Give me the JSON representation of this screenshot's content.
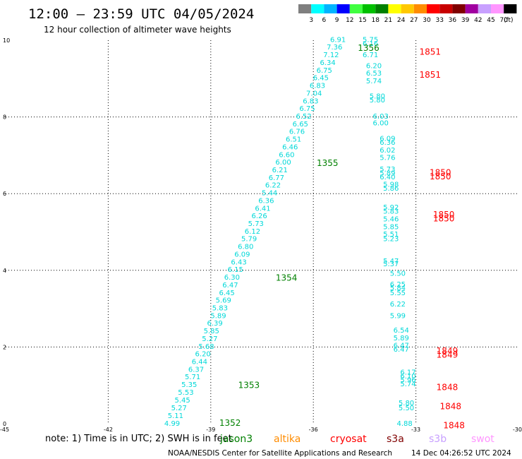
{
  "header": {
    "title": "12:00 — 23:59 UTC 04/05/2024",
    "subtitle": "12 hour collection of altimeter wave heights"
  },
  "colorbar": {
    "labels": [
      "3",
      "6",
      "9",
      "12",
      "15",
      "18",
      "21",
      "24",
      "27",
      "30",
      "33",
      "36",
      "39",
      "42",
      "45",
      "70"
    ],
    "unit": "(ft)",
    "colors": [
      "#7f7f7f",
      "#00ffff",
      "#00b4ff",
      "#0000ff",
      "#40ff40",
      "#00c000",
      "#008000",
      "#ffff00",
      "#ffc800",
      "#ff8c00",
      "#ff0000",
      "#c80000",
      "#800000",
      "#a000a0",
      "#c8a0ff",
      "#ff96ff",
      "#000000"
    ]
  },
  "footer": {
    "note": "note:  1) Time is in UTC; 2) SWH is in feet",
    "satellites": [
      {
        "name": "jason3",
        "color": "#008000"
      },
      {
        "name": "altika",
        "color": "#ff8c00"
      },
      {
        "name": "cryosat",
        "color": "#ff0000"
      },
      {
        "name": "s3a",
        "color": "#800000"
      },
      {
        "name": "s3b",
        "color": "#c8a0ff"
      },
      {
        "name": "swot",
        "color": "#ff96ff"
      }
    ],
    "credit": "NOAA/NESDIS Center for Satellite Applications and Research",
    "generated": "14 Dec 04:26:52 UTC 2024"
  },
  "chart_data": {
    "type": "scatter",
    "title": "12:00 — 23:59 UTC 04/05/2024",
    "subtitle": "12 hour collection of altimeter wave heights",
    "xlim": [
      -45,
      -30
    ],
    "ylim": [
      0,
      10
    ],
    "x_ticks": [
      "-45",
      "-42",
      "-39",
      "-36",
      "-33",
      "-30"
    ],
    "y_ticks": [
      "0",
      "2",
      "4",
      "6",
      "8",
      "10"
    ],
    "grid": true,
    "value_color": "#00d8d8",
    "series": [
      {
        "name": "jason3",
        "color": "#008000",
        "points": [
          {
            "x": -39.9,
            "y": 0.02,
            "v": "4.99"
          },
          {
            "x": -39.8,
            "y": 0.22,
            "v": "5.11"
          },
          {
            "x": -39.7,
            "y": 0.42,
            "v": "5.27"
          },
          {
            "x": -39.6,
            "y": 0.63,
            "v": "5.45"
          },
          {
            "x": -39.5,
            "y": 0.83,
            "v": "5.53"
          },
          {
            "x": -39.4,
            "y": 1.03,
            "v": "5.35"
          },
          {
            "x": -39.3,
            "y": 1.23,
            "v": "5.71"
          },
          {
            "x": -39.2,
            "y": 1.43,
            "v": "6.37"
          },
          {
            "x": -39.1,
            "y": 1.63,
            "v": "6.44"
          },
          {
            "x": -39.0,
            "y": 1.83,
            "v": "6.20"
          },
          {
            "x": -38.9,
            "y": 2.03,
            "v": "5.68"
          },
          {
            "x": -38.8,
            "y": 2.23,
            "v": "5.27"
          },
          {
            "x": -38.75,
            "y": 2.43,
            "v": "5.85"
          },
          {
            "x": -38.65,
            "y": 2.63,
            "v": "6.39"
          },
          {
            "x": -38.55,
            "y": 2.83,
            "v": "5.89"
          },
          {
            "x": -38.5,
            "y": 3.03,
            "v": "5.83"
          },
          {
            "x": -38.4,
            "y": 3.23,
            "v": "5.69"
          },
          {
            "x": -38.3,
            "y": 3.43,
            "v": "6.45"
          },
          {
            "x": -38.2,
            "y": 3.63,
            "v": "6.47"
          },
          {
            "x": -38.15,
            "y": 3.83,
            "v": "6.30"
          },
          {
            "x": -38.05,
            "y": 4.03,
            "v": "6.15"
          },
          {
            "x": -37.95,
            "y": 4.23,
            "v": "6.43"
          },
          {
            "x": -37.85,
            "y": 4.43,
            "v": "6.09"
          },
          {
            "x": -37.75,
            "y": 4.63,
            "v": "6.80"
          },
          {
            "x": -37.65,
            "y": 4.83,
            "v": "5.79"
          },
          {
            "x": -37.55,
            "y": 5.03,
            "v": "6.12"
          },
          {
            "x": -37.45,
            "y": 5.23,
            "v": "5.73"
          },
          {
            "x": -37.35,
            "y": 5.43,
            "v": "6.26"
          },
          {
            "x": -37.25,
            "y": 5.63,
            "v": "6.41"
          },
          {
            "x": -37.15,
            "y": 5.83,
            "v": "6.36"
          },
          {
            "x": -37.05,
            "y": 6.03,
            "v": "5.44"
          },
          {
            "x": -36.95,
            "y": 6.23,
            "v": "6.22"
          },
          {
            "x": -36.85,
            "y": 6.43,
            "v": "6.77"
          },
          {
            "x": -36.75,
            "y": 6.63,
            "v": "6.21"
          },
          {
            "x": -36.65,
            "y": 6.83,
            "v": "6.00"
          },
          {
            "x": -36.55,
            "y": 7.03,
            "v": "6.60"
          },
          {
            "x": -36.45,
            "y": 7.23,
            "v": "6.46"
          },
          {
            "x": -36.35,
            "y": 7.43,
            "v": "6.51"
          },
          {
            "x": -36.25,
            "y": 7.63,
            "v": "6.76"
          },
          {
            "x": -36.15,
            "y": 7.83,
            "v": "6.65"
          },
          {
            "x": -36.05,
            "y": 8.03,
            "v": "6.52"
          },
          {
            "x": -35.95,
            "y": 8.23,
            "v": "6.75"
          },
          {
            "x": -35.85,
            "y": 8.43,
            "v": "6.83"
          },
          {
            "x": -35.75,
            "y": 8.63,
            "v": "7.04"
          },
          {
            "x": -35.65,
            "y": 8.83,
            "v": "6.83"
          },
          {
            "x": -35.55,
            "y": 9.03,
            "v": "6.45"
          },
          {
            "x": -35.45,
            "y": 9.23,
            "v": "6.75"
          },
          {
            "x": -35.35,
            "y": 9.43,
            "v": "6.34"
          },
          {
            "x": -35.25,
            "y": 9.63,
            "v": "7.12"
          },
          {
            "x": -35.15,
            "y": 9.83,
            "v": "7.36"
          },
          {
            "x": -35.05,
            "y": 10.03,
            "v": "6.91"
          }
        ],
        "pass_labels": [
          {
            "x": -38.75,
            "y": 0.02,
            "text": "1352"
          },
          {
            "x": -38.2,
            "y": 1.0,
            "text": "1353"
          },
          {
            "x": -37.1,
            "y": 3.8,
            "text": "1354"
          },
          {
            "x": -35.9,
            "y": 6.8,
            "text": "1355"
          },
          {
            "x": -34.7,
            "y": 9.8,
            "text": "1356"
          }
        ]
      },
      {
        "name": "cryosat",
        "color": "#ff0000",
        "points": [
          {
            "x": -33.1,
            "y": 0.02,
            "v": "4.88"
          },
          {
            "x": -33.05,
            "y": 0.42,
            "v": "5.50"
          },
          {
            "x": -33.05,
            "y": 0.55,
            "v": "5.80"
          },
          {
            "x": -33.0,
            "y": 1.05,
            "v": "5.74"
          },
          {
            "x": -33.0,
            "y": 1.15,
            "v": "5.96"
          },
          {
            "x": -33.0,
            "y": 1.25,
            "v": "6.10"
          },
          {
            "x": -33.0,
            "y": 1.35,
            "v": "6.17"
          },
          {
            "x": -33.2,
            "y": 1.95,
            "v": "6.47"
          },
          {
            "x": -33.2,
            "y": 2.05,
            "v": "6.47"
          },
          {
            "x": -33.2,
            "y": 2.25,
            "v": "5.89"
          },
          {
            "x": -33.2,
            "y": 2.45,
            "v": "6.54"
          },
          {
            "x": -33.3,
            "y": 2.83,
            "v": "5.99"
          },
          {
            "x": -33.3,
            "y": 3.13,
            "v": "6.22"
          },
          {
            "x": -33.3,
            "y": 3.43,
            "v": "5.55"
          },
          {
            "x": -33.3,
            "y": 3.55,
            "v": "5.84"
          },
          {
            "x": -33.3,
            "y": 3.65,
            "v": "6.25"
          },
          {
            "x": -33.3,
            "y": 3.93,
            "v": "5.50"
          },
          {
            "x": -33.5,
            "y": 4.18,
            "v": "5.37"
          },
          {
            "x": -33.5,
            "y": 4.25,
            "v": "5.47"
          },
          {
            "x": -33.5,
            "y": 4.83,
            "v": "5.23"
          },
          {
            "x": -33.5,
            "y": 4.95,
            "v": "5.51"
          },
          {
            "x": -33.5,
            "y": 5.15,
            "v": "5.85"
          },
          {
            "x": -33.5,
            "y": 5.35,
            "v": "5.46"
          },
          {
            "x": -33.5,
            "y": 5.55,
            "v": "5.83"
          },
          {
            "x": -33.5,
            "y": 5.65,
            "v": "5.92"
          },
          {
            "x": -33.5,
            "y": 6.15,
            "v": "5.86"
          },
          {
            "x": -33.5,
            "y": 6.25,
            "v": "5.98"
          },
          {
            "x": -33.6,
            "y": 6.45,
            "v": "6.40"
          },
          {
            "x": -33.6,
            "y": 6.55,
            "v": "5.89"
          },
          {
            "x": -33.6,
            "y": 6.65,
            "v": "5.73"
          },
          {
            "x": -33.6,
            "y": 6.95,
            "v": "5.76"
          },
          {
            "x": -33.6,
            "y": 7.15,
            "v": "6.02"
          },
          {
            "x": -33.6,
            "y": 7.35,
            "v": "6.36"
          },
          {
            "x": -33.6,
            "y": 7.45,
            "v": "6.09"
          },
          {
            "x": -33.8,
            "y": 7.85,
            "v": "6.00"
          },
          {
            "x": -33.8,
            "y": 8.03,
            "v": "6.03"
          },
          {
            "x": -33.9,
            "y": 8.45,
            "v": "5.80"
          },
          {
            "x": -33.9,
            "y": 8.55,
            "v": "5.80"
          },
          {
            "x": -34.0,
            "y": 8.95,
            "v": "5.74"
          },
          {
            "x": -34.0,
            "y": 9.15,
            "v": "6.53"
          },
          {
            "x": -34.0,
            "y": 9.35,
            "v": "6.20"
          },
          {
            "x": -34.1,
            "y": 9.63,
            "v": "6.71"
          },
          {
            "x": -34.1,
            "y": 9.93,
            "v": "6.16"
          },
          {
            "x": -34.1,
            "y": 10.03,
            "v": "5.75"
          }
        ],
        "pass_labels": [
          {
            "x": -32.2,
            "y": -0.05,
            "text": "1848"
          },
          {
            "x": -32.3,
            "y": 0.45,
            "text": "1848"
          },
          {
            "x": -32.4,
            "y": 0.95,
            "text": "1848"
          },
          {
            "x": -32.4,
            "y": 1.8,
            "text": "1849"
          },
          {
            "x": -32.4,
            "y": 1.9,
            "text": "1849"
          },
          {
            "x": -32.5,
            "y": 5.35,
            "text": "1850"
          },
          {
            "x": -32.5,
            "y": 5.45,
            "text": "1850"
          },
          {
            "x": -32.6,
            "y": 6.45,
            "text": "1850"
          },
          {
            "x": -32.6,
            "y": 6.55,
            "text": "1850"
          },
          {
            "x": -32.9,
            "y": 9.1,
            "text": "1851"
          },
          {
            "x": -32.9,
            "y": 9.7,
            "text": "1851"
          }
        ]
      }
    ]
  }
}
